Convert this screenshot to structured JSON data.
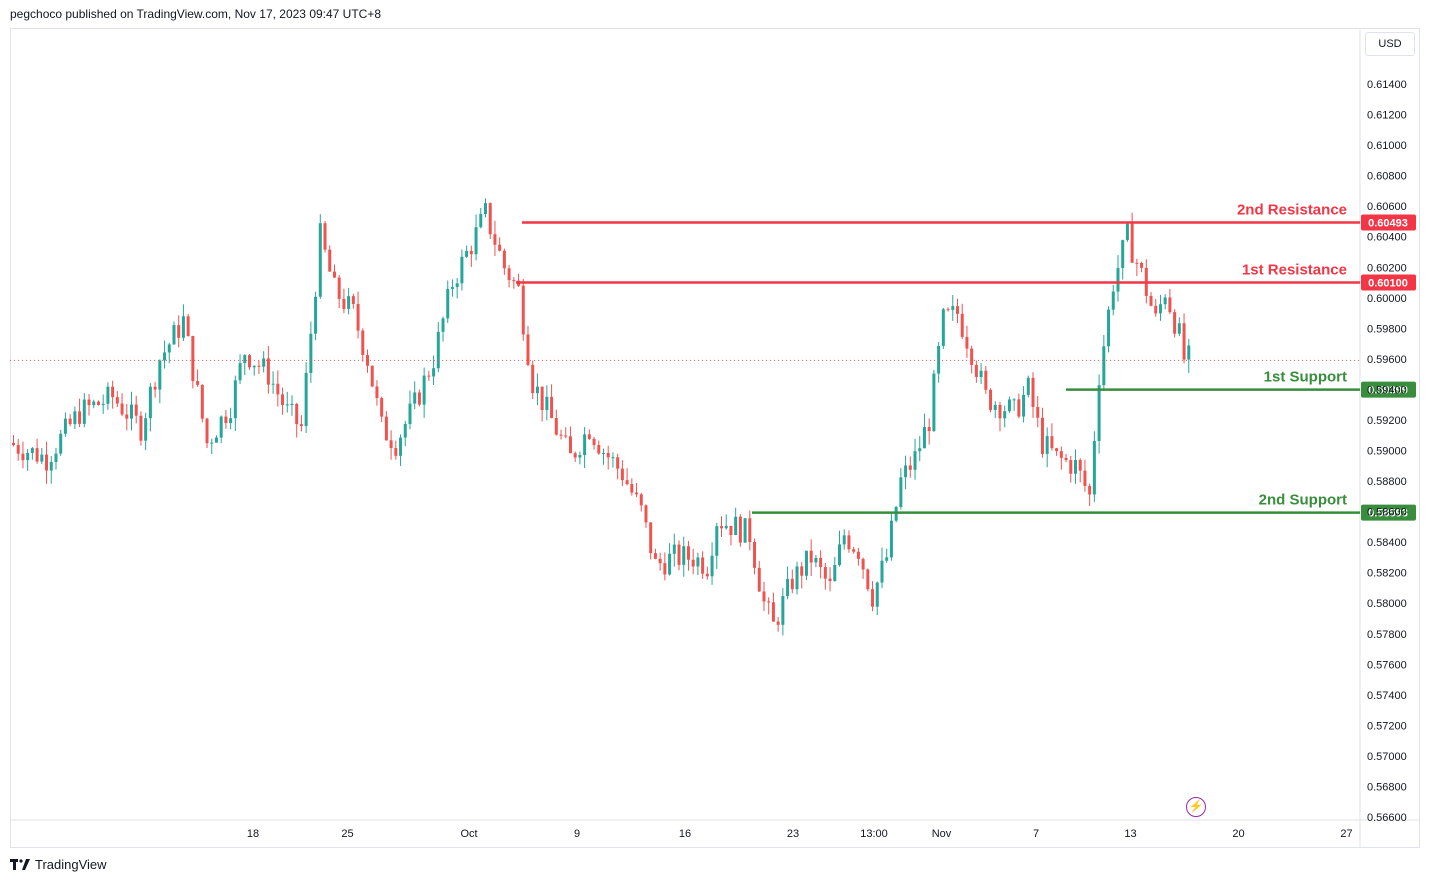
{
  "header": {
    "text": "pegchoco published on TradingView.com, Nov 17, 2023 09:47 UTC+8"
  },
  "currency_button": "USD",
  "footer": {
    "brand": "TradingView"
  },
  "colors": {
    "up": "#26a69a",
    "down": "#ef5350",
    "resistance": "#f23645",
    "support": "#388e3c"
  },
  "chart_data": {
    "type": "candlestick",
    "ylim": [
      0.566,
      0.616
    ],
    "y_ticks": [
      "0.61400",
      "0.61200",
      "0.61000",
      "0.60800",
      "0.60600",
      "0.60400",
      "0.60200",
      "0.60000",
      "0.59800",
      "0.59600",
      "0.59400",
      "0.59200",
      "0.59000",
      "0.58800",
      "0.58600",
      "0.58400",
      "0.58200",
      "0.58000",
      "0.57800",
      "0.57600",
      "0.57400",
      "0.57200",
      "0.57000",
      "0.56800",
      "0.56600"
    ],
    "x_ticks": [
      "18",
      "25",
      "Oct",
      "9",
      "16",
      "23",
      "13:00",
      "Nov",
      "7",
      "13",
      "20",
      "27"
    ],
    "current_price": 0.5959,
    "levels": [
      {
        "label": "2nd Resistance",
        "value": 0.60493,
        "tag": "0.60493",
        "kind": "resistance"
      },
      {
        "label": "1st Resistance",
        "value": 0.601,
        "tag": "0.60100",
        "kind": "resistance"
      },
      {
        "label": "1st Support",
        "value": 0.59399,
        "tag": "0.59399",
        "kind": "support"
      },
      {
        "label": "2nd Support",
        "value": 0.58593,
        "tag": "0.58593",
        "kind": "support"
      }
    ],
    "price_path": [
      [
        0,
        0.5905
      ],
      [
        8,
        0.5895
      ],
      [
        15,
        0.5925
      ],
      [
        22,
        0.5935
      ],
      [
        28,
        0.5915
      ],
      [
        32,
        0.596
      ],
      [
        37,
        0.5985
      ],
      [
        42,
        0.5905
      ],
      [
        47,
        0.593
      ],
      [
        50,
        0.5965
      ],
      [
        55,
        0.595
      ],
      [
        59,
        0.5925
      ],
      [
        62,
        0.5915
      ],
      [
        66,
        0.604
      ],
      [
        69,
        0.6005
      ],
      [
        73,
        0.599
      ],
      [
        76,
        0.596
      ],
      [
        79,
        0.5915
      ],
      [
        82,
        0.5905
      ],
      [
        86,
        0.593
      ],
      [
        90,
        0.596
      ],
      [
        94,
        0.601
      ],
      [
        98,
        0.6035
      ],
      [
        101,
        0.6055
      ],
      [
        105,
        0.602
      ],
      [
        108,
        0.6005
      ],
      [
        111,
        0.5945
      ],
      [
        115,
        0.592
      ],
      [
        119,
        0.5895
      ],
      [
        123,
        0.5915
      ],
      [
        126,
        0.59
      ],
      [
        130,
        0.5885
      ],
      [
        134,
        0.586
      ],
      [
        137,
        0.5825
      ],
      [
        141,
        0.583
      ],
      [
        145,
        0.583
      ],
      [
        148,
        0.5825
      ],
      [
        150,
        0.5855
      ],
      [
        154,
        0.585
      ],
      [
        157,
        0.5845
      ],
      [
        160,
        0.58
      ],
      [
        162,
        0.5785
      ],
      [
        166,
        0.5815
      ],
      [
        170,
        0.583
      ],
      [
        174,
        0.581
      ],
      [
        177,
        0.5845
      ],
      [
        180,
        0.5835
      ],
      [
        183,
        0.5805
      ],
      [
        186,
        0.583
      ],
      [
        189,
        0.588
      ],
      [
        192,
        0.5895
      ],
      [
        195,
        0.592
      ],
      [
        198,
        0.5985
      ],
      [
        201,
        0.599
      ],
      [
        204,
        0.5965
      ],
      [
        207,
        0.5935
      ],
      [
        210,
        0.593
      ],
      [
        213,
        0.5925
      ],
      [
        216,
        0.594
      ],
      [
        219,
        0.5905
      ],
      [
        222,
        0.5895
      ],
      [
        226,
        0.589
      ],
      [
        229,
        0.587
      ],
      [
        231,
        0.595
      ],
      [
        234,
        0.601
      ],
      [
        237,
        0.604
      ],
      [
        240,
        0.6015
      ],
      [
        243,
        0.5985
      ],
      [
        245,
        0.6005
      ],
      [
        248,
        0.5975
      ],
      [
        249,
        0.596
      ]
    ],
    "x_domain": [
      0,
      280
    ],
    "x_tick_positions": [
      18,
      25,
      34,
      42,
      50,
      58,
      64,
      69,
      76,
      83,
      91,
      99
    ]
  }
}
